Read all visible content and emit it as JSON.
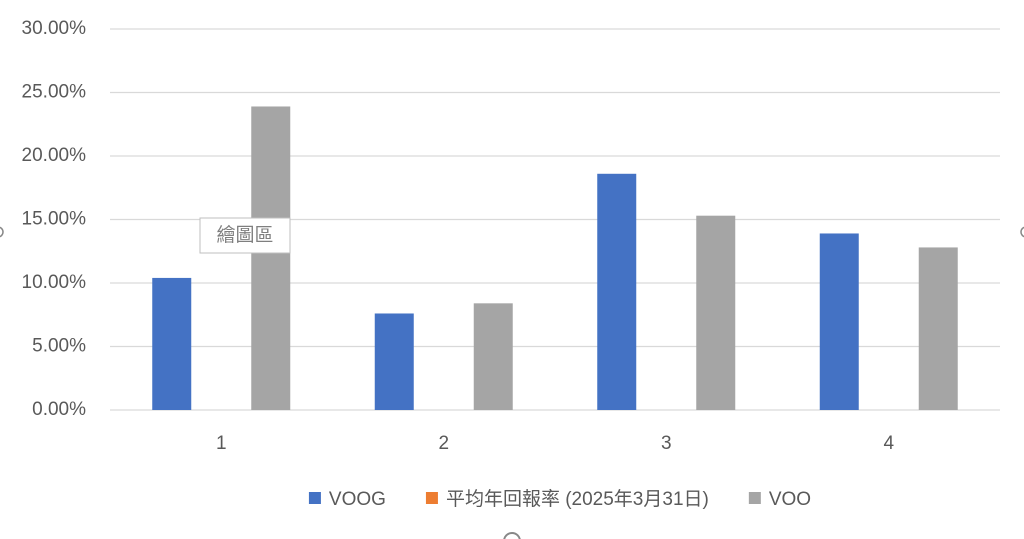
{
  "chart_data": {
    "type": "bar",
    "categories": [
      "1",
      "2",
      "3",
      "4"
    ],
    "series": [
      {
        "name": "VOOG",
        "color": "#4472c4",
        "values": [
          10.4,
          7.6,
          18.6,
          13.9
        ]
      },
      {
        "name": "平均年回報率 (2025年3月31日)",
        "color": "#ed7d31",
        "values": [
          null,
          null,
          null,
          null
        ]
      },
      {
        "name": "VOO",
        "color": "#a5a5a5",
        "values": [
          23.9,
          8.4,
          15.3,
          12.8
        ]
      }
    ],
    "ylim": [
      0,
      30
    ],
    "yticks": [
      {
        "value": 0,
        "label": "0.00%"
      },
      {
        "value": 5,
        "label": "5.00%"
      },
      {
        "value": 10,
        "label": "10.00%"
      },
      {
        "value": 15,
        "label": "15.00%"
      },
      {
        "value": 20,
        "label": "20.00%"
      },
      {
        "value": 25,
        "label": "25.00%"
      },
      {
        "value": 30,
        "label": "30.00%"
      }
    ],
    "grid": true,
    "legend": "bottom",
    "tooltip": "繪圖區"
  }
}
